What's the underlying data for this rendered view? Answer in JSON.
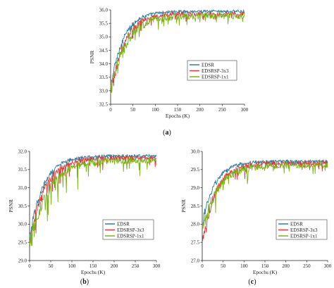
{
  "colors": {
    "EDSR": "#2a7f9e",
    "EDSRSP-3x3": "#e0363a",
    "EDSRSP-1x1": "#7ab317"
  },
  "chart_data": [
    {
      "id": "a",
      "type": "line",
      "panel_label": "(a)",
      "xlabel": "Epochs (K)",
      "ylabel": "PSNR",
      "xlim": [
        0,
        300
      ],
      "ylim": [
        32.5,
        36.0
      ],
      "xticks": [
        0,
        50,
        100,
        150,
        200,
        250,
        300
      ],
      "yticks": [
        32.5,
        33.0,
        33.5,
        34.0,
        34.5,
        35.0,
        35.5,
        36.0
      ],
      "legend_position": "center-right",
      "series": [
        {
          "name": "EDSR",
          "color_key": "EDSR",
          "start": 33.1,
          "plateau": 35.95,
          "rate": 28,
          "noise": 0.05,
          "dips": 0.15
        },
        {
          "name": "EDSRSP-3x3",
          "color_key": "EDSRSP-3x3",
          "start": 32.8,
          "plateau": 35.85,
          "rate": 30,
          "noise": 0.08,
          "dips": 0.35
        },
        {
          "name": "EDSRSP-1x1",
          "color_key": "EDSRSP-1x1",
          "start": 33.0,
          "plateau": 35.78,
          "rate": 34,
          "noise": 0.12,
          "dips": 0.55
        }
      ]
    },
    {
      "id": "b",
      "type": "line",
      "panel_label": "(b)",
      "xlabel": "Epochs (K)",
      "ylabel": "PSNR",
      "xlim": [
        0,
        300
      ],
      "ylim": [
        29.0,
        32.0
      ],
      "xticks": [
        0,
        50,
        100,
        150,
        200,
        250,
        300
      ],
      "yticks": [
        29.0,
        29.5,
        30.0,
        30.5,
        31.0,
        31.5,
        32.0
      ],
      "legend_position": "bottom-right",
      "series": [
        {
          "name": "EDSR",
          "color_key": "EDSR",
          "start": 29.6,
          "plateau": 31.88,
          "rate": 32,
          "noise": 0.04,
          "dips": 0.2
        },
        {
          "name": "EDSRSP-3x3",
          "color_key": "EDSRSP-3x3",
          "start": 29.5,
          "plateau": 31.83,
          "rate": 36,
          "noise": 0.06,
          "dips": 0.45
        },
        {
          "name": "EDSRSP-1x1",
          "color_key": "EDSRSP-1x1",
          "start": 29.4,
          "plateau": 31.76,
          "rate": 42,
          "noise": 0.09,
          "dips": 0.7
        }
      ]
    },
    {
      "id": "c",
      "type": "line",
      "panel_label": "(c)",
      "xlabel": "Epochs (K)",
      "ylabel": "PSNR",
      "xlim": [
        0,
        300
      ],
      "ylim": [
        27.0,
        30.0
      ],
      "xticks": [
        0,
        50,
        100,
        150,
        200,
        250,
        300
      ],
      "yticks": [
        27.0,
        27.5,
        28.0,
        28.5,
        29.0,
        29.5,
        30.0
      ],
      "legend_position": "bottom-right",
      "series": [
        {
          "name": "EDSR",
          "color_key": "EDSR",
          "start": 28.0,
          "plateau": 29.73,
          "rate": 30,
          "noise": 0.04,
          "dips": 0.2
        },
        {
          "name": "EDSRSP-3x3",
          "color_key": "EDSRSP-3x3",
          "start": 27.45,
          "plateau": 29.68,
          "rate": 32,
          "noise": 0.06,
          "dips": 0.35
        },
        {
          "name": "EDSRSP-1x1",
          "color_key": "EDSRSP-1x1",
          "start": 27.8,
          "plateau": 29.62,
          "rate": 36,
          "noise": 0.08,
          "dips": 0.5
        }
      ]
    }
  ]
}
